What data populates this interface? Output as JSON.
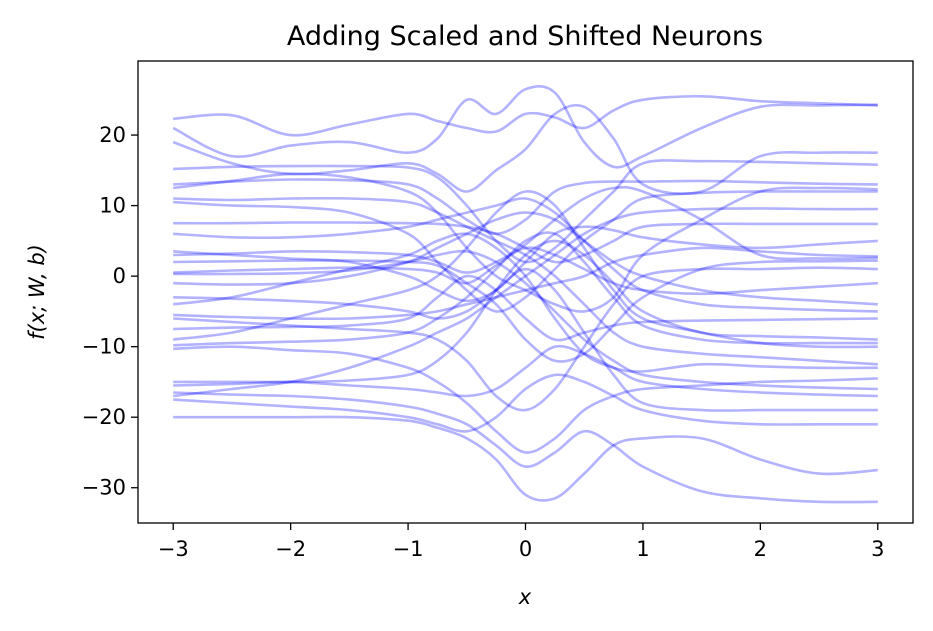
{
  "chart_data": {
    "type": "line",
    "title": "Adding Scaled and Shifted Neurons",
    "xlabel": "x",
    "ylabel": "f(x; W, b)",
    "xlim": [
      -3.3,
      3.3
    ],
    "ylim": [
      -35,
      30.5
    ],
    "xticks": [
      -3,
      -2,
      -1,
      0,
      1,
      2,
      3
    ],
    "yticks": [
      -30,
      -20,
      -10,
      0,
      10,
      20
    ],
    "xtick_labels": [
      "−3",
      "−2",
      "−1",
      "0",
      "1",
      "2",
      "3"
    ],
    "ytick_labels": [
      "−30",
      "−20",
      "−10",
      "0",
      "10",
      "20"
    ],
    "grid": false,
    "line_color": "#0000ff",
    "line_alpha": 0.3,
    "x": [
      -3,
      -2.5,
      -2,
      -1.5,
      -1,
      -0.75,
      -0.5,
      -0.25,
      0,
      0.25,
      0.5,
      0.75,
      1,
      1.5,
      2,
      2.5,
      3
    ],
    "series": [
      {
        "values": [
          22.3,
          22.8,
          20.0,
          21.5,
          23.0,
          22.0,
          21.0,
          20.5,
          23.0,
          22.5,
          21.0,
          23.5,
          25.0,
          25.5,
          24.8,
          24.5,
          24.2
        ]
      },
      {
        "values": [
          21.0,
          17.0,
          18.5,
          19.0,
          17.5,
          19.5,
          25.0,
          23.0,
          26.5,
          26.0,
          19.0,
          15.5,
          17.0,
          21.0,
          24.0,
          24.2,
          24.3
        ]
      },
      {
        "values": [
          19.0,
          16.0,
          14.5,
          15.0,
          16.0,
          14.5,
          12.0,
          15.0,
          18.0,
          23.0,
          24.0,
          19.5,
          13.0,
          12.0,
          17.0,
          17.5,
          17.5
        ]
      },
      {
        "values": [
          15.2,
          15.5,
          15.6,
          15.6,
          15.4,
          14.0,
          10.0,
          5.0,
          2.0,
          4.0,
          8.0,
          12.0,
          16.0,
          16.3,
          16.2,
          16.0,
          15.8
        ]
      },
      {
        "values": [
          13.0,
          13.4,
          13.7,
          13.6,
          13.0,
          11.0,
          8.0,
          6.0,
          8.0,
          12.0,
          13.2,
          13.4,
          13.4,
          13.5,
          13.3,
          13.1,
          13.0
        ]
      },
      {
        "values": [
          12.5,
          13.5,
          14.5,
          14.0,
          12.0,
          9.0,
          4.0,
          0.0,
          -2.0,
          -4.0,
          -5.0,
          -3.0,
          3.0,
          8.0,
          12.0,
          12.5,
          12.3
        ]
      },
      {
        "values": [
          11.0,
          10.8,
          11.0,
          11.0,
          10.5,
          9.0,
          7.0,
          5.0,
          3.0,
          0.0,
          -4.0,
          -8.0,
          -10.0,
          -11.0,
          -11.5,
          -12.0,
          -12.5
        ]
      },
      {
        "values": [
          10.5,
          10.0,
          9.8,
          9.0,
          6.0,
          2.0,
          -2.0,
          -5.0,
          -3.0,
          1.0,
          5.0,
          8.0,
          11.0,
          11.8,
          12.0,
          12.0,
          12.0
        ]
      },
      {
        "values": [
          7.5,
          7.5,
          7.6,
          7.6,
          7.5,
          7.4,
          7.0,
          6.0,
          4.0,
          2.0,
          3.0,
          5.0,
          7.0,
          7.4,
          7.4,
          7.4,
          7.4
        ]
      },
      {
        "values": [
          6.0,
          5.5,
          5.5,
          6.0,
          7.0,
          8.0,
          9.0,
          10.0,
          11.0,
          9.0,
          5.0,
          1.0,
          -2.0,
          -4.0,
          -4.5,
          -4.8,
          -5.0
        ]
      },
      {
        "values": [
          3.5,
          3.0,
          2.5,
          2.0,
          0.0,
          -2.0,
          -3.5,
          -2.0,
          2.0,
          6.0,
          7.0,
          6.5,
          5.5,
          4.5,
          4.0,
          4.5,
          5.0
        ]
      },
      {
        "values": [
          3.0,
          3.2,
          3.5,
          3.4,
          3.0,
          2.0,
          0.5,
          2.0,
          4.5,
          8.0,
          11.0,
          12.5,
          12.0,
          8.0,
          3.0,
          2.5,
          2.6
        ]
      },
      {
        "values": [
          2.0,
          2.1,
          2.2,
          2.2,
          2.0,
          1.5,
          -1.0,
          -4.0,
          -9.0,
          -12.0,
          -11.0,
          -7.0,
          -3.0,
          1.0,
          2.0,
          2.1,
          2.2
        ]
      },
      {
        "values": [
          0.5,
          0.8,
          1.0,
          1.2,
          1.0,
          0.5,
          -1.0,
          1.5,
          4.0,
          3.0,
          1.0,
          -1.0,
          -2.0,
          -2.5,
          -2.0,
          -1.5,
          -1.0
        ]
      },
      {
        "values": [
          0.3,
          0.3,
          0.4,
          0.8,
          2.0,
          3.0,
          3.5,
          2.0,
          -1.0,
          -5.0,
          -9.0,
          -12.0,
          -14.0,
          -15.0,
          -15.5,
          -15.8,
          -16.0
        ]
      },
      {
        "values": [
          -1.0,
          -1.2,
          -1.0,
          0.0,
          2.0,
          4.0,
          6.0,
          8.0,
          9.0,
          8.0,
          5.0,
          2.0,
          0.0,
          -2.0,
          -3.0,
          -3.5,
          -4.0
        ]
      },
      {
        "values": [
          -3.0,
          -3.2,
          -3.5,
          -4.0,
          -5.0,
          -6.0,
          -5.0,
          -2.0,
          1.0,
          -2.0,
          -8.0,
          -14.0,
          -18.0,
          -19.0,
          -19.0,
          -19.0,
          -19.0
        ]
      },
      {
        "values": [
          -4.0,
          -3.0,
          -1.0,
          1.0,
          3.0,
          5.0,
          6.0,
          4.0,
          0.0,
          -6.0,
          -11.0,
          -13.0,
          -13.5,
          -12.5,
          -12.8,
          -13.0,
          -13.0
        ]
      },
      {
        "values": [
          -5.5,
          -5.8,
          -6.0,
          -6.0,
          -5.5,
          -5.0,
          -4.0,
          -3.0,
          -2.0,
          -1.0,
          0.0,
          2.0,
          3.0,
          4.0,
          3.5,
          3.0,
          2.8
        ]
      },
      {
        "values": [
          -6.0,
          -6.5,
          -7.0,
          -7.5,
          -8.0,
          -9.0,
          -12.0,
          -17.0,
          -19.0,
          -16.0,
          -10.0,
          -4.0,
          0.0,
          1.0,
          1.0,
          1.2,
          1.0
        ]
      },
      {
        "values": [
          -7.5,
          -7.3,
          -7.2,
          -7.0,
          -6.0,
          -3.0,
          0.0,
          -2.0,
          -6.0,
          -9.0,
          -8.0,
          -7.0,
          -6.5,
          -6.3,
          -6.2,
          -6.1,
          -6.0
        ]
      },
      {
        "values": [
          -9.0,
          -8.0,
          -6.0,
          -4.0,
          -2.0,
          0.0,
          4.0,
          9.0,
          12.0,
          10.0,
          4.0,
          -2.0,
          -6.0,
          -8.0,
          -9.5,
          -10.0,
          -10.0
        ]
      },
      {
        "values": [
          -9.8,
          -9.5,
          -9.3,
          -9.0,
          -8.0,
          -6.0,
          -3.0,
          1.0,
          5.0,
          6.0,
          2.0,
          -3.0,
          -7.0,
          -9.0,
          -9.5,
          -9.5,
          -9.5
        ]
      },
      {
        "values": [
          -10.3,
          -10.0,
          -10.5,
          -11.0,
          -13.0,
          -15.0,
          -18.0,
          -22.0,
          -25.0,
          -23.0,
          -19.0,
          -17.0,
          -16.0,
          -15.5,
          -15.0,
          -14.8,
          -14.5
        ]
      },
      {
        "values": [
          -15.0,
          -15.0,
          -15.0,
          -14.8,
          -14.0,
          -12.0,
          -8.0,
          -2.0,
          3.0,
          5.0,
          3.0,
          -1.0,
          -5.0,
          -8.0,
          -8.5,
          -8.7,
          -9.0
        ]
      },
      {
        "values": [
          -15.5,
          -15.3,
          -15.0,
          -15.5,
          -16.0,
          -16.5,
          -17.0,
          -16.0,
          -13.0,
          -10.0,
          -11.0,
          -13.0,
          -15.0,
          -16.0,
          -16.5,
          -16.8,
          -17.0
        ]
      },
      {
        "values": [
          -17.0,
          -16.0,
          -15.0,
          -13.0,
          -10.0,
          -8.0,
          -6.0,
          -3.0,
          0.0,
          3.0,
          6.0,
          8.0,
          9.0,
          9.5,
          9.6,
          9.5,
          9.5
        ]
      },
      {
        "values": [
          -17.5,
          -18.0,
          -18.5,
          -19.0,
          -20.0,
          -21.0,
          -22.0,
          -20.0,
          -16.0,
          -14.0,
          -15.0,
          -17.0,
          -19.0,
          -20.5,
          -21.0,
          -21.0,
          -21.0
        ]
      },
      {
        "values": [
          -20.0,
          -20.0,
          -20.0,
          -20.0,
          -20.5,
          -21.5,
          -23.0,
          -26.0,
          -31.0,
          -31.5,
          -28.0,
          -24.0,
          -23.0,
          -23.0,
          -26.0,
          -28.0,
          -27.5
        ]
      },
      {
        "values": [
          -16.5,
          -16.8,
          -17.0,
          -17.5,
          -18.5,
          -19.5,
          -21.0,
          -24.0,
          -27.0,
          -25.0,
          -22.0,
          -24.0,
          -27.0,
          -30.5,
          -31.5,
          -32.0,
          -32.0
        ]
      }
    ]
  }
}
